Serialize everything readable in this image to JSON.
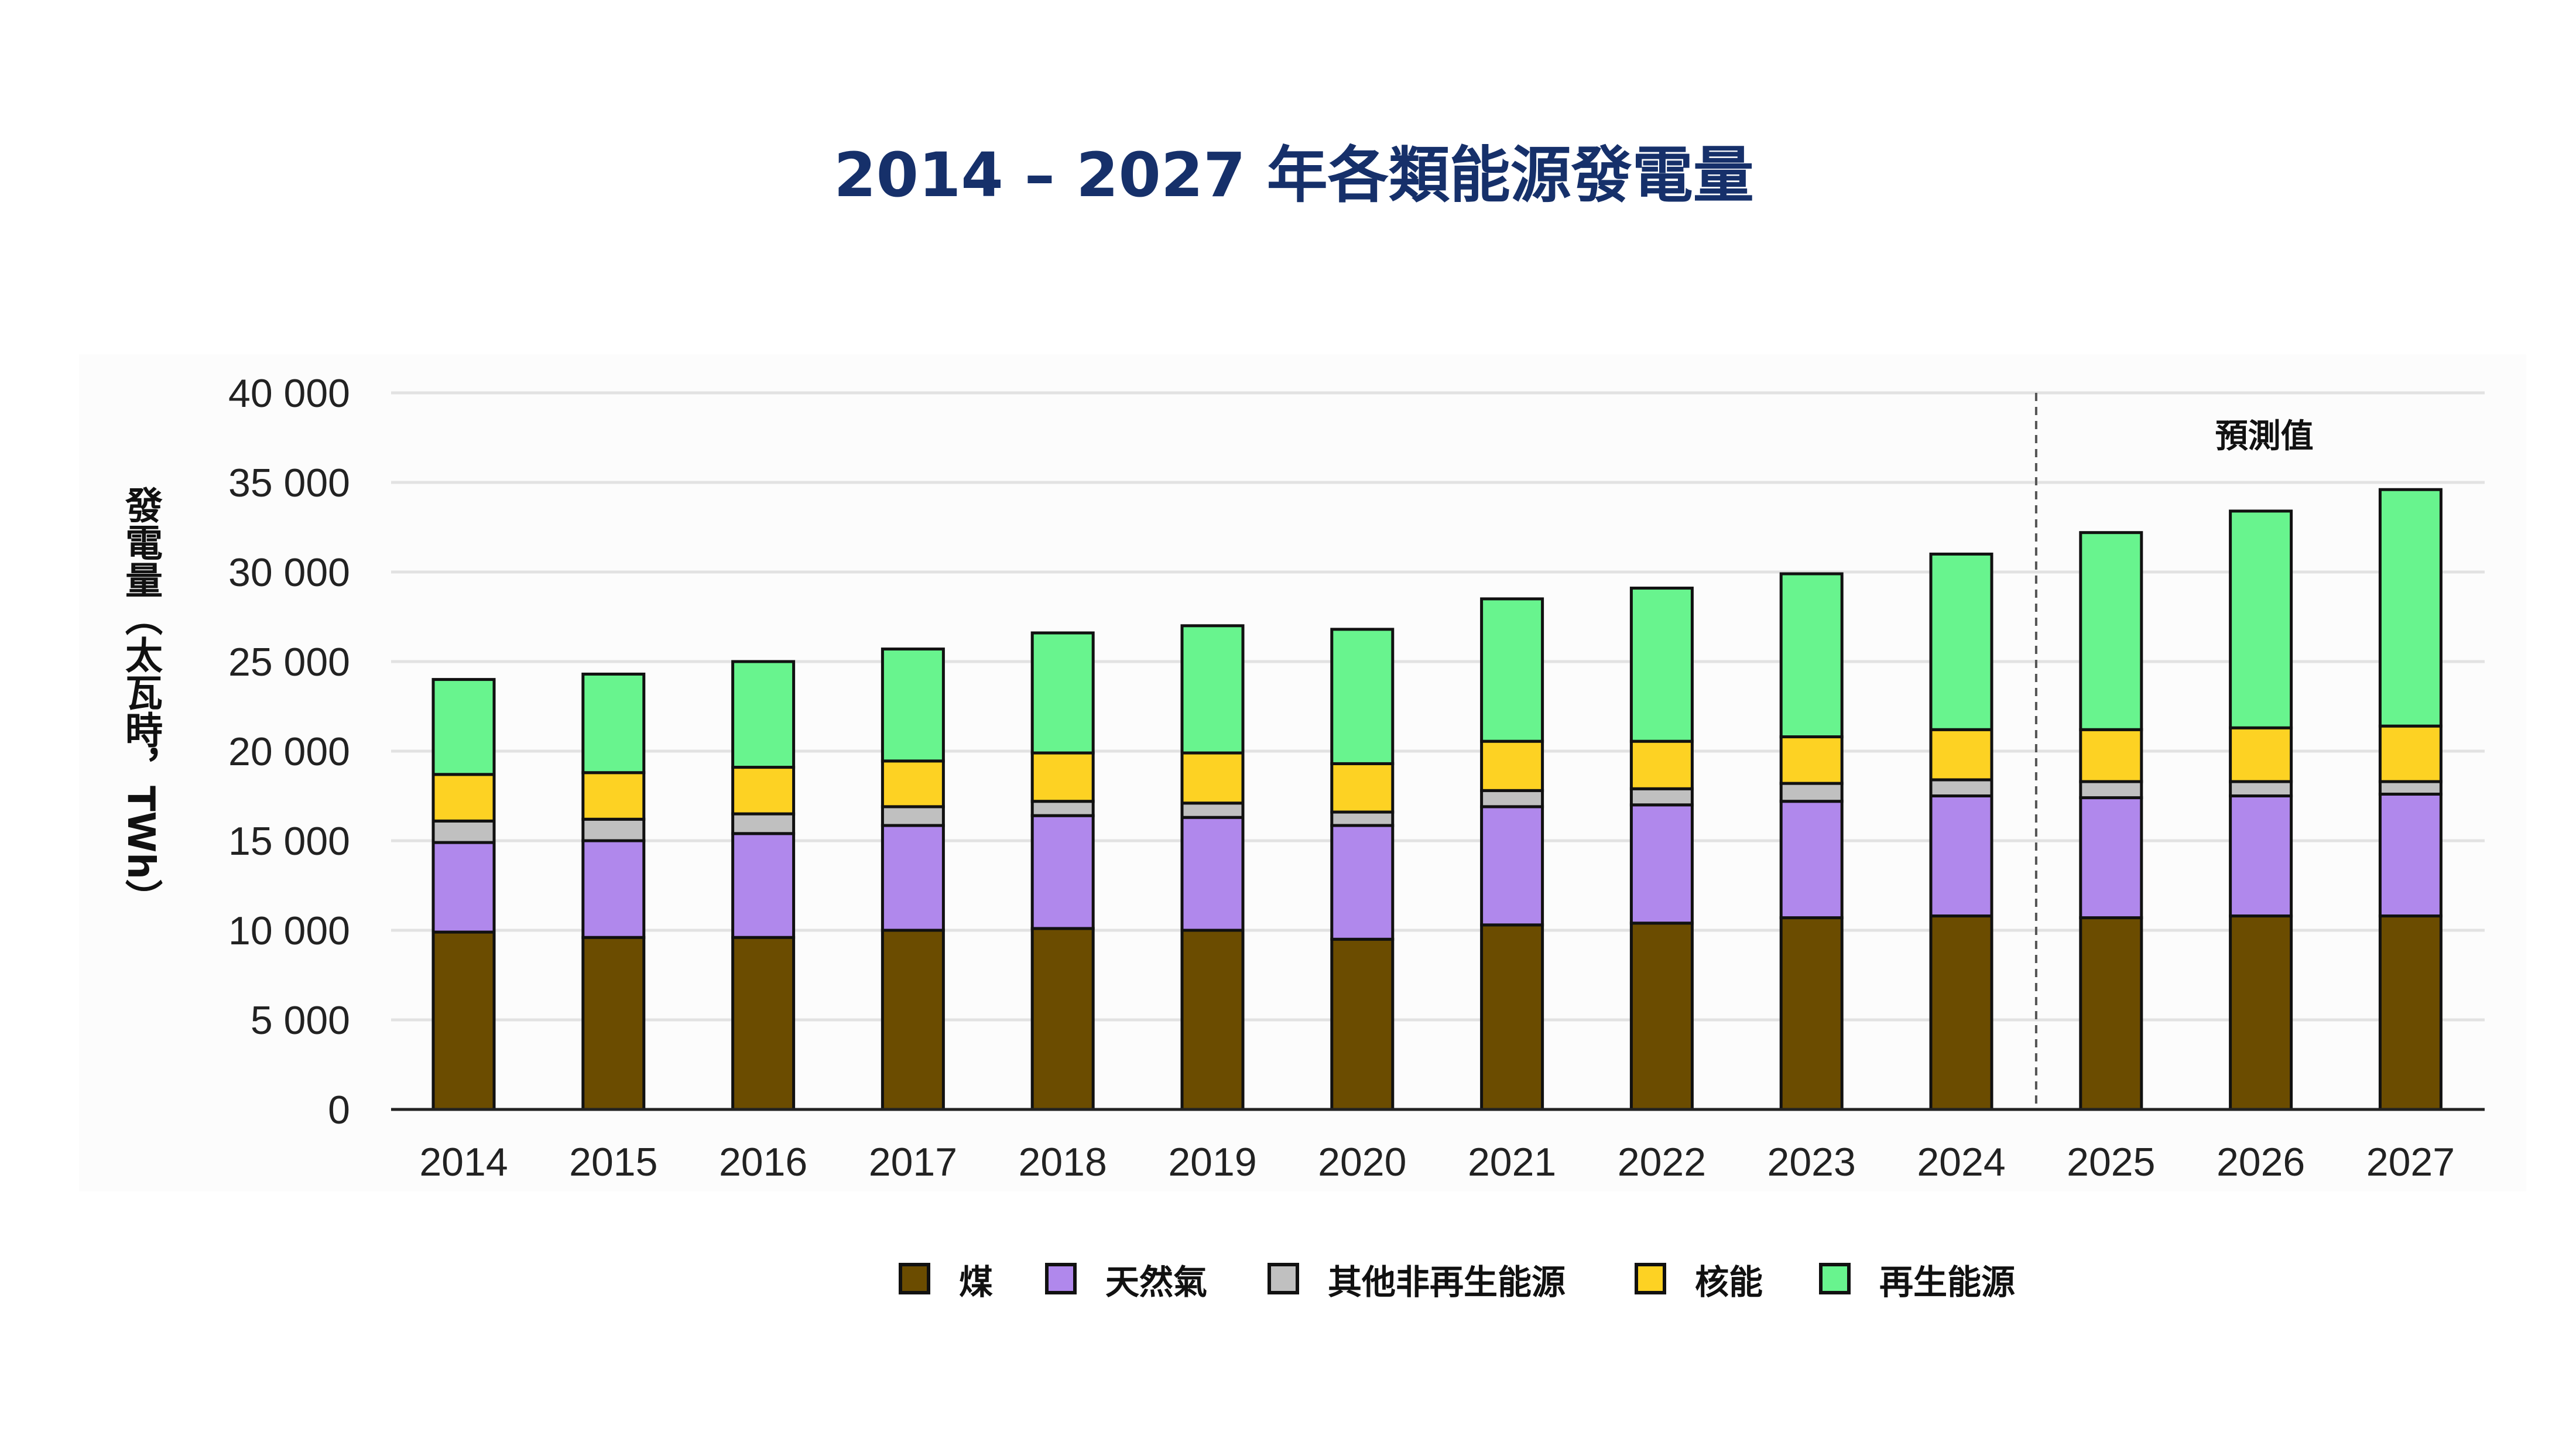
{
  "chart_data": {
    "type": "bar",
    "stacked": true,
    "title": "2014 – 2027 年各類能源發電量",
    "xlabel": "",
    "ylabel": "發電量（太瓦時，TWh）",
    "ylim": [
      0,
      40000
    ],
    "yticks": [
      0,
      5000,
      10000,
      15000,
      20000,
      25000,
      30000,
      35000,
      40000
    ],
    "ytick_labels": [
      "0",
      "5 000",
      "10 000",
      "15 000",
      "20 000",
      "25 000",
      "30 000",
      "35 000",
      "40 000"
    ],
    "grid": true,
    "legend_position": "bottom",
    "categories": [
      "2014",
      "2015",
      "2016",
      "2017",
      "2018",
      "2019",
      "2020",
      "2021",
      "2022",
      "2023",
      "2024",
      "2025",
      "2026",
      "2027"
    ],
    "forecast_annotation": {
      "label": "預測值",
      "after_category": "2024"
    },
    "series": [
      {
        "name": "煤",
        "color": "#6b4c00",
        "values": [
          9900,
          9600,
          9600,
          10000,
          10100,
          10000,
          9500,
          10300,
          10400,
          10700,
          10800,
          10700,
          10800,
          10800
        ]
      },
      {
        "name": "天然氣",
        "color": "#b088ec",
        "values": [
          5000,
          5400,
          5800,
          5850,
          6300,
          6300,
          6350,
          6600,
          6600,
          6500,
          6700,
          6700,
          6700,
          6800
        ]
      },
      {
        "name": "其他非再生能源",
        "color": "#c0c0c0",
        "values": [
          1200,
          1200,
          1100,
          1050,
          800,
          800,
          750,
          900,
          900,
          1000,
          900,
          900,
          800,
          700
        ]
      },
      {
        "name": "核能",
        "color": "#fdd223",
        "values": [
          2600,
          2600,
          2600,
          2550,
          2700,
          2800,
          2700,
          2750,
          2650,
          2600,
          2800,
          2900,
          3000,
          3100
        ]
      },
      {
        "name": "再生能源",
        "color": "#68f48e",
        "values": [
          5300,
          5500,
          5900,
          6250,
          6700,
          7100,
          7500,
          7950,
          8550,
          9100,
          9800,
          11000,
          12100,
          13200
        ]
      }
    ]
  }
}
